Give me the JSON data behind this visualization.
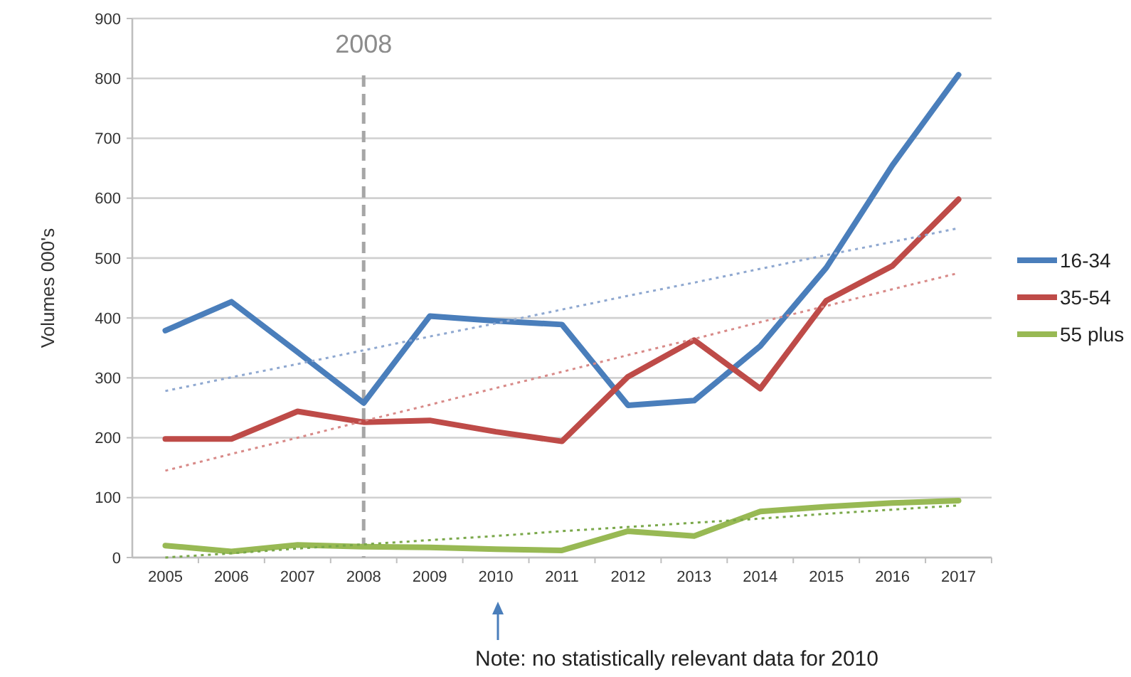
{
  "chart_data": {
    "type": "line",
    "ylabel": "Volumes 000's",
    "x": [
      2005,
      2006,
      2007,
      2008,
      2009,
      2010,
      2011,
      2012,
      2013,
      2014,
      2015,
      2016,
      2017
    ],
    "series": [
      {
        "name": "16-34",
        "color": "#4a7ebb",
        "values": [
          379,
          427,
          343,
          258,
          403,
          395,
          389,
          254,
          262,
          353,
          484,
          655,
          806
        ]
      },
      {
        "name": "35-54",
        "color": "#be4b48",
        "values": [
          198,
          198,
          244,
          226,
          229,
          210,
          194,
          302,
          363,
          282,
          429,
          487,
          598
        ]
      },
      {
        "name": "55 plus",
        "color": "#98b954",
        "values": [
          20,
          10,
          21,
          18,
          17,
          14,
          12,
          44,
          36,
          77,
          85,
          91,
          95
        ]
      },
      {
        "type": "line",
        "color": "#8fa8d0",
        "line_style": "dotted",
        "values": [
          278,
          301,
          323,
          346,
          369,
          391,
          414,
          437,
          459,
          482,
          505,
          527,
          550
        ]
      },
      {
        "type": "line",
        "color": "#d88a88",
        "line_style": "dotted",
        "values": [
          145,
          173,
          200,
          228,
          255,
          283,
          310,
          338,
          365,
          393,
          420,
          448,
          475
        ]
      },
      {
        "type": "line",
        "color": "#7aa84a",
        "line_style": "dotted",
        "values": [
          0,
          7,
          15,
          22,
          29,
          36,
          44,
          51,
          58,
          65,
          73,
          80,
          87
        ]
      }
    ],
    "xlim": [
      2004.5,
      2017.5
    ],
    "xticks": [
      2005,
      2006,
      2007,
      2008,
      2009,
      2010,
      2011,
      2012,
      2013,
      2014,
      2015,
      2016,
      2017
    ],
    "ylim": [
      0,
      900
    ],
    "yticks": [
      0,
      100,
      200,
      300,
      400,
      500,
      600,
      700,
      800,
      900
    ],
    "grid": "y",
    "legend": "right",
    "marker": "none",
    "line_style": "solid",
    "ref_lines": [
      {
        "axis": "x",
        "value": 2008,
        "label": "2008",
        "color": "#a6a6a6",
        "line_style": "dashed"
      }
    ],
    "annotations": [
      "Note: no statistically relevant data for 2010"
    ]
  }
}
